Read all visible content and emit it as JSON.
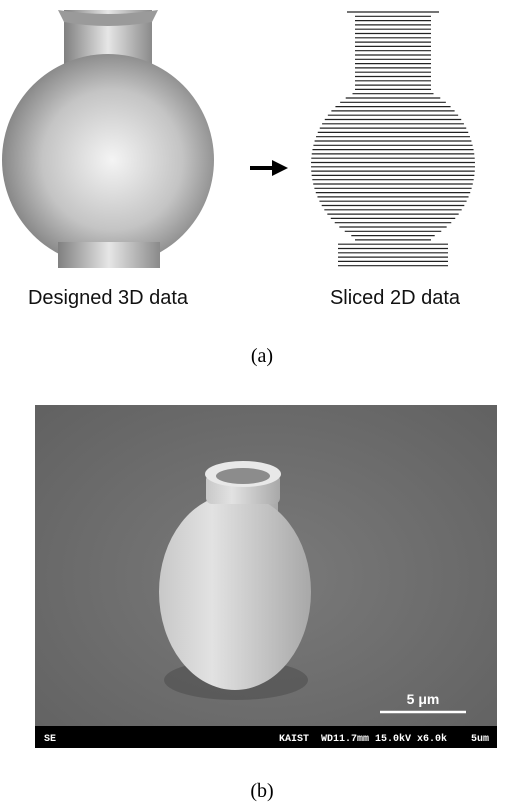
{
  "panel_a": {
    "left_caption": "Designed 3D data",
    "right_caption": "Sliced 2D data",
    "label": "(a)"
  },
  "panel_b": {
    "scale_label": "5 μm",
    "info_mode": "SE",
    "info_details": "KAIST  WD11.7mm 15.0kV x6.0k    5um",
    "label": "(b)"
  }
}
